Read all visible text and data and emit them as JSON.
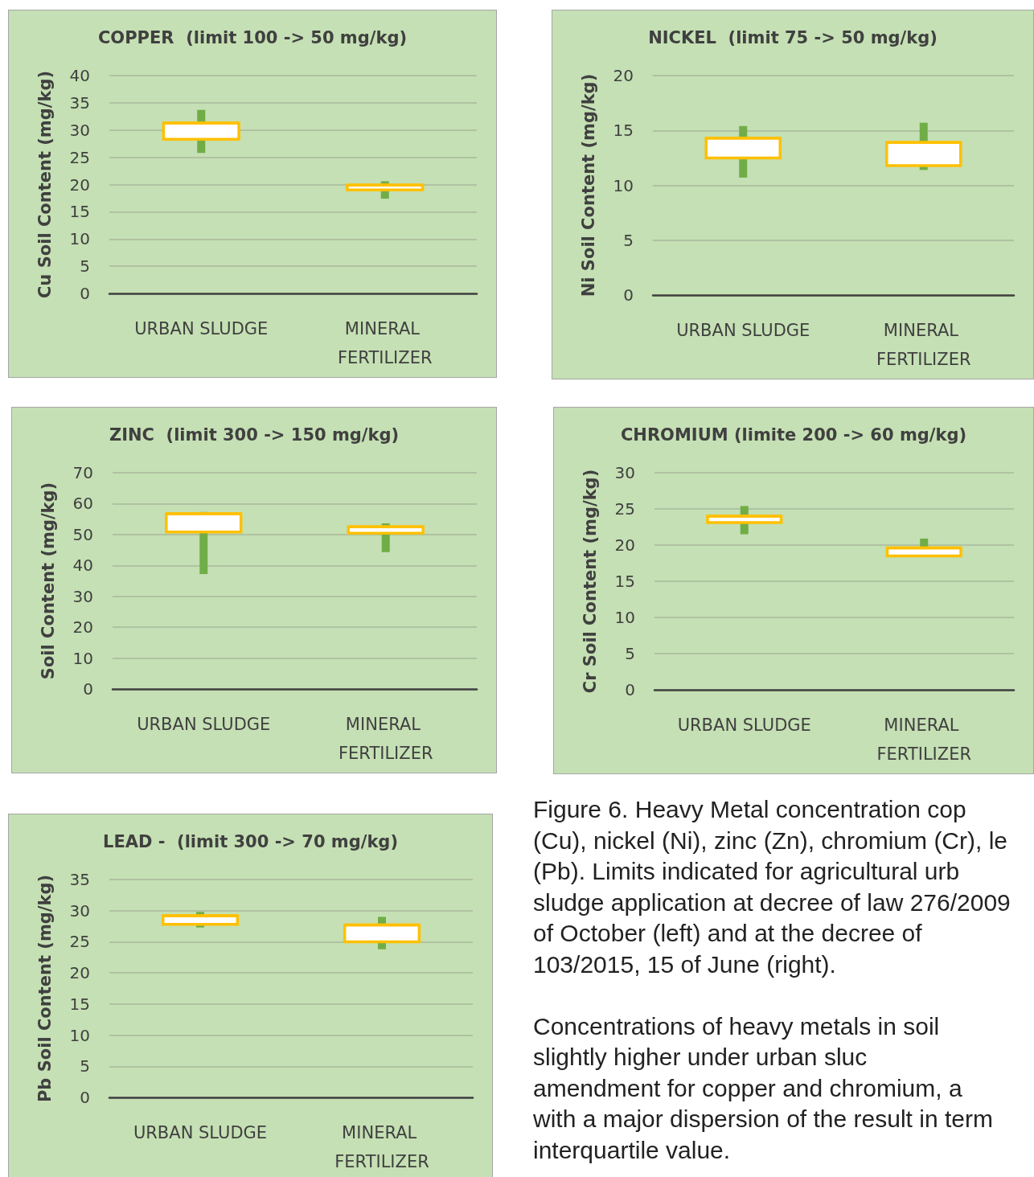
{
  "chart_data": [
    {
      "type": "box",
      "title": "COPPER  (limit 100 -> 50 mg/kg)",
      "ylabel": "Cu Soil Content (mg/kg)",
      "categories": [
        "URBAN SLUDGE",
        "MINERAL FERTILIZER"
      ],
      "ylim": [
        0,
        40
      ],
      "yticks": [
        0,
        5,
        10,
        15,
        20,
        25,
        30,
        35,
        40
      ],
      "grid": "y",
      "series": [
        {
          "color": "#ffc000",
          "boxes": [
            {
              "low": 25.8,
              "q1": 28.3,
              "median": 31.3,
              "q3": 31.3,
              "high": 33.7
            },
            {
              "low": 17.4,
              "q1": 19.0,
              "median": 19.9,
              "q3": 19.9,
              "high": 20.6
            }
          ]
        }
      ]
    },
    {
      "type": "box",
      "title": "NICKEL  (limit 75 -> 50 mg/kg)",
      "ylabel": "Ni Soil Content (mg/kg)",
      "categories": [
        "URBAN SLUDGE",
        "MINERAL FERTILIZER"
      ],
      "ylim": [
        0,
        20
      ],
      "yticks": [
        0,
        5,
        10,
        15,
        20
      ],
      "grid": "y",
      "series": [
        {
          "color": "#ffc000",
          "boxes": [
            {
              "low": 10.7,
              "q1": 12.5,
              "median": 14.3,
              "q3": 14.3,
              "high": 15.4
            },
            {
              "low": 11.4,
              "q1": 11.8,
              "median": 13.9,
              "q3": 13.9,
              "high": 15.7
            }
          ]
        }
      ]
    },
    {
      "type": "box",
      "title": "ZINC  (limit 300 -> 150 mg/kg)",
      "ylabel": "Soil Content (mg/kg)",
      "categories": [
        "URBAN SLUDGE",
        "MINERAL FERTILIZER"
      ],
      "ylim": [
        0,
        70
      ],
      "yticks": [
        0,
        10,
        20,
        30,
        40,
        50,
        60,
        70
      ],
      "grid": "y",
      "series": [
        {
          "color": "#ffc000",
          "boxes": [
            {
              "low": 37.2,
              "q1": 50.8,
              "median": 56.7,
              "q3": 56.7,
              "high": 57.3
            },
            {
              "low": 44.3,
              "q1": 50.4,
              "median": 52.5,
              "q3": 52.5,
              "high": 53.6
            }
          ]
        }
      ]
    },
    {
      "type": "box",
      "title": "CHROMIUM (limite 200 -> 60 mg/kg)",
      "ylabel": "Cr Soil Content (mg/kg)",
      "categories": [
        "URBAN SLUDGE",
        "MINERAL FERTILIZER"
      ],
      "ylim": [
        0,
        30
      ],
      "yticks": [
        0,
        5,
        10,
        15,
        20,
        25,
        30
      ],
      "grid": "y",
      "series": [
        {
          "color": "#ffc000",
          "boxes": [
            {
              "low": 21.5,
              "q1": 23.1,
              "median": 24.0,
              "q3": 24.0,
              "high": 25.4
            },
            {
              "low": 18.5,
              "q1": 18.5,
              "median": 19.6,
              "q3": 19.6,
              "high": 20.9
            }
          ]
        }
      ]
    },
    {
      "type": "box",
      "title": "LEAD -  (limit 300 -> 70 mg/kg)",
      "ylabel": "Pb Soil Content (mg/kg)",
      "categories": [
        "URBAN SLUDGE",
        "MINERAL FERTILIZER"
      ],
      "ylim": [
        0,
        35
      ],
      "yticks": [
        0,
        5,
        10,
        15,
        20,
        25,
        30,
        35
      ],
      "grid": "y",
      "series": [
        {
          "color": "#ffc000",
          "boxes": [
            {
              "low": 27.3,
              "q1": 27.8,
              "median": 29.2,
              "q3": 29.2,
              "high": 29.8
            },
            {
              "low": 23.8,
              "q1": 25.0,
              "median": 27.7,
              "q3": 27.7,
              "high": 29.0
            }
          ]
        }
      ]
    },
    {
      "type": "other",
      "annotations": [
        "Figure 6. Heavy Metal concentration cop\n(Cu), nickel (Ni), zinc (Zn), chromium (Cr), le\n(Pb). Limits indicated for agricultural urb\nsludge application at decree of law 276/2009\nof October (left) and at the decree of\n103/2015, 15 of June (right).",
        "Concentrations of heavy metals in soil\nslightly higher under urban sluc\namendment for copper and chromium, a\nwith a major dispersion of the result in term\ninterquartile value."
      ]
    }
  ]
}
